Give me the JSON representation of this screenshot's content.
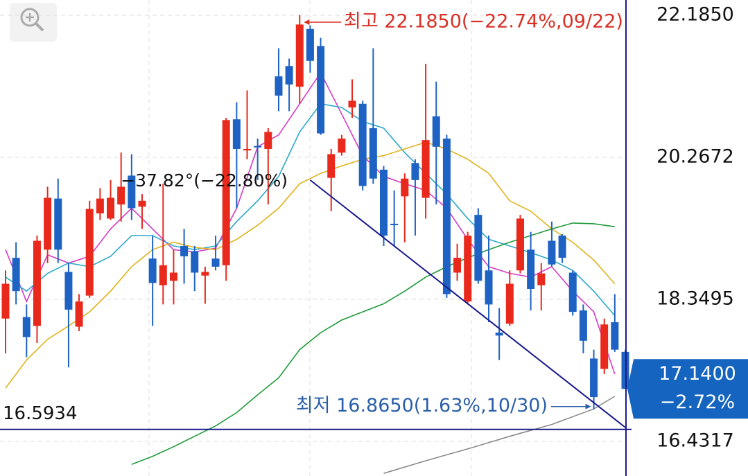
{
  "chart_data": {
    "type": "candlestick",
    "up_color": "#e8291c",
    "down_color": "#1e63c4",
    "open": [
      18.09,
      18.91,
      18.11,
      17.99,
      19.02,
      19.71,
      18.72,
      17.98,
      18.4,
      19.51,
      19.44,
      19.63,
      20.02,
      19.6,
      18.9,
      18.54,
      18.6,
      19.07,
      19.0,
      18.67,
      18.9,
      18.81,
      20.78,
      20.36,
      20.42,
      20.38,
      21.36,
      21.5,
      21.22,
      22.0,
      21.77,
      19.99,
      20.33,
      20.94,
      20.99,
      20.66,
      20.1,
      19.37,
      19.74,
      20.19,
      19.72,
      20.82,
      20.52,
      18.71,
      18.32,
      19.49,
      18.74,
      17.9,
      18.02,
      18.74,
      19.02,
      18.54,
      19.14,
      19.21,
      18.71,
      18.2,
      17.55,
      17.41,
      18.04,
      17.64
    ],
    "high": [
      18.74,
      19.12,
      18.28,
      19.21,
      19.87,
      19.98,
      18.84,
      18.42,
      19.68,
      19.85,
      19.96,
      20.33,
      20.31,
      19.77,
      19.21,
      19.91,
      19.02,
      19.3,
      19.07,
      18.79,
      19.21,
      20.8,
      21.01,
      21.17,
      20.52,
      20.66,
      21.74,
      21.6,
      22.185,
      22.05,
      21.88,
      20.38,
      20.57,
      21.32,
      21.03,
      21.74,
      20.15,
      19.82,
      20.05,
      20.24,
      21.53,
      21.29,
      20.57,
      19.1,
      19.26,
      19.58,
      19.21,
      18.23,
      18.74,
      19.49,
      19.26,
      18.84,
      19.4,
      19.23,
      18.74,
      18.28,
      17.67,
      18.09,
      18.42,
      17.67
    ],
    "low": [
      17.62,
      18.28,
      17.57,
      17.76,
      18.84,
      18.84,
      17.43,
      17.92,
      18.37,
      19.42,
      19.42,
      19.4,
      19.42,
      19.3,
      17.99,
      18.28,
      18.28,
      18.56,
      18.46,
      18.29,
      18.74,
      18.6,
      19.58,
      20.24,
      19.96,
      19.63,
      20.89,
      20.89,
      20.99,
      21.41,
      20.57,
      19.54,
      20.29,
      20.8,
      19.82,
      19.91,
      19.07,
      19.07,
      19.12,
      19.21,
      19.44,
      19.63,
      18.37,
      18.6,
      18.28,
      18.56,
      18.04,
      17.53,
      17.99,
      18.7,
      18.2,
      18.2,
      18.79,
      18.84,
      18.13,
      17.62,
      16.865,
      17.34,
      17.64,
      17.18
    ],
    "close": [
      18.56,
      18.46,
      17.84,
      19.14,
      19.72,
      19.02,
      18.21,
      18.32,
      19.57,
      19.71,
      19.72,
      19.87,
      19.58,
      19.68,
      18.57,
      18.81,
      18.71,
      18.93,
      18.71,
      18.72,
      18.79,
      20.77,
      20.38,
      20.38,
      20.4,
      20.61,
      21.1,
      21.25,
      22.06,
      21.57,
      20.59,
      20.31,
      20.52,
      21.03,
      19.88,
      19.98,
      19.21,
      19.35,
      19.98,
      19.96,
      20.5,
      20.41,
      18.42,
      18.91,
      19.21,
      18.6,
      18.28,
      17.86,
      18.56,
      19.44,
      18.49,
      18.7,
      18.82,
      18.91,
      18.18,
      17.79,
      17.03,
      18.01,
      17.67,
      17.14
    ],
    "lines": [
      {
        "color": "#d63ac4",
        "x": [
          0,
          2,
          4,
          6,
          8,
          10,
          12,
          14,
          16,
          18,
          20,
          22,
          24,
          26,
          28,
          30,
          32,
          34,
          36,
          38,
          40,
          42,
          44,
          46,
          48,
          50,
          52,
          54,
          56,
          58
        ],
        "values": [
          19.02,
          18.32,
          18.95,
          18.84,
          18.93,
          19.3,
          19.58,
          19.3,
          19.02,
          18.99,
          19.04,
          19.58,
          20.41,
          20.57,
          20.99,
          21.41,
          20.85,
          20.29,
          20.01,
          19.91,
          19.82,
          19.58,
          19.16,
          18.79,
          18.7,
          18.65,
          18.79,
          18.46,
          18.18,
          17.34
        ]
      },
      {
        "color": "#2aa9c9",
        "x": [
          0,
          2,
          4,
          6,
          8,
          10,
          12,
          14,
          16,
          18,
          20,
          22,
          24,
          26,
          28,
          30,
          32,
          34,
          36,
          38,
          40,
          42,
          44,
          46,
          48,
          50,
          52,
          54,
          56,
          58
        ],
        "values": [
          18.65,
          18.46,
          18.7,
          18.84,
          18.79,
          18.93,
          19.21,
          19.21,
          19.07,
          19.02,
          19.07,
          19.4,
          19.68,
          20.01,
          20.61,
          20.99,
          20.94,
          20.75,
          20.66,
          20.33,
          20.05,
          19.77,
          19.44,
          19.16,
          19.07,
          18.98,
          18.88,
          18.74,
          18.46,
          18.13
        ]
      },
      {
        "color": "#e0b21a",
        "x": [
          0,
          2,
          4,
          6,
          8,
          10,
          12,
          14,
          16,
          18,
          20,
          22,
          24,
          26,
          28,
          30,
          32,
          34,
          36,
          38,
          40,
          42,
          44,
          46,
          48,
          50,
          52,
          54,
          56,
          58
        ],
        "values": [
          17.15,
          17.53,
          17.81,
          17.99,
          18.18,
          18.46,
          18.79,
          19.02,
          19.12,
          19.05,
          19.02,
          19.16,
          19.35,
          19.58,
          19.91,
          20.05,
          20.15,
          20.24,
          20.29,
          20.38,
          20.47,
          20.38,
          20.24,
          20.05,
          19.68,
          19.54,
          19.3,
          19.12,
          18.88,
          18.56
        ]
      },
      {
        "color": "#1f9a3a",
        "x": [
          12,
          14,
          16,
          18,
          20,
          22,
          24,
          26,
          28,
          30,
          32,
          34,
          36,
          38,
          40,
          42,
          44,
          46,
          48,
          50,
          52,
          54,
          56,
          58
        ],
        "values": [
          16.12,
          16.23,
          16.36,
          16.5,
          16.64,
          16.82,
          17.06,
          17.29,
          17.67,
          17.9,
          18.07,
          18.18,
          18.29,
          18.46,
          18.65,
          18.79,
          18.91,
          19.02,
          19.12,
          19.21,
          19.3,
          19.38,
          19.37,
          19.33
        ]
      },
      {
        "color": "#8a8a8a",
        "x": [
          36,
          40,
          44,
          48,
          52,
          56,
          58
        ],
        "values": [
          16.0,
          16.17,
          16.33,
          16.5,
          16.66,
          16.87,
          17.04
        ]
      }
    ],
    "trendline": {
      "x": [
        29,
        59
      ],
      "values": [
        19.96,
        16.62
      ],
      "color": "#1a1a8c",
      "label": "−37.82°(−22.80%)"
    },
    "hline": {
      "value": 16.5934,
      "label": "16.5934",
      "color": "#1a1a8c"
    },
    "annotations": [
      {
        "text": "최고 22.1850(−22.74%,09/22)",
        "color": "#d93025",
        "index": 28
      },
      {
        "text": "최저 16.8650(1.63%,10/30)",
        "color": "#2a5fa8",
        "index": 56
      }
    ],
    "last_price": {
      "value": 17.14,
      "label": "17.1400",
      "change": "−2.72%",
      "color": "#1565c0"
    },
    "ylim": [
      15.964,
      22.391
    ],
    "yticks": [
      {
        "value": 22.185,
        "label": "22.1850"
      },
      {
        "value": 20.2672,
        "label": "20.2672"
      },
      {
        "value": 18.3495,
        "label": "18.3495"
      },
      {
        "value": 16.4317,
        "label": "16.4317"
      }
    ],
    "grid": true
  }
}
